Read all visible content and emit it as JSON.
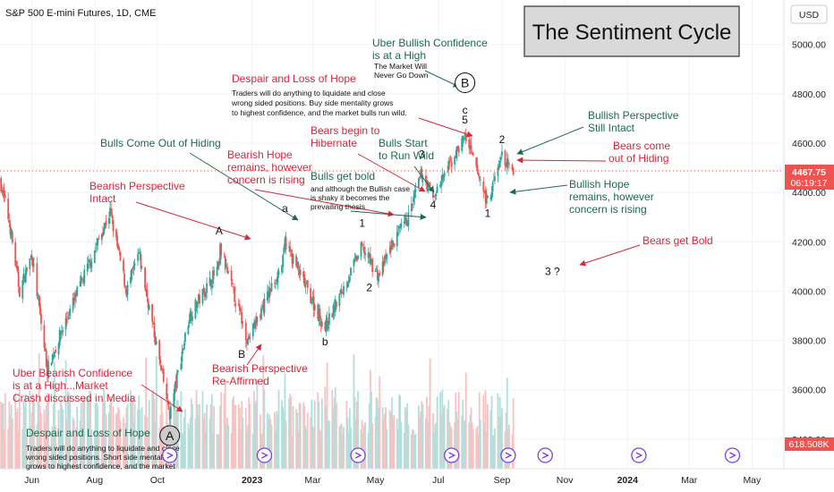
{
  "header": {
    "symbol": "S&P 500 E-mini Futures, 1D, CME",
    "currency": "USD"
  },
  "title_box": {
    "text": "The Sentiment Cycle"
  },
  "price_badges": {
    "last_price": "4467.75",
    "countdown": "06:19:17",
    "volume": "618.508K"
  },
  "colors": {
    "up": "#26a69a",
    "down": "#ef5350",
    "bear_note": "#d7263d",
    "bull_note": "#1b6b50",
    "event": "#7b3fe4"
  },
  "chart_data": {
    "type": "candlestick",
    "title": "The Sentiment Cycle",
    "ylim": [
      3280,
      5180
    ],
    "y_ticks": [
      "5000.00",
      "4800.00",
      "4600.00",
      "4400.00",
      "4200.00",
      "4000.00",
      "3800.00",
      "3600.00",
      "3400.00"
    ],
    "y_tick_values": [
      5000,
      4800,
      4600,
      4400,
      4200,
      4000,
      3800,
      3600,
      3400
    ],
    "x_ticks": [
      "Jun",
      "Aug",
      "Oct",
      "2023",
      "Mar",
      "May",
      "Jul",
      "Sep",
      "Nov",
      "2024",
      "Mar",
      "May"
    ],
    "x_tick_dates": [
      "2022-06-01",
      "2022-08-01",
      "2022-10-01",
      "2023-01-01",
      "2023-03-01",
      "2023-05-01",
      "2023-07-01",
      "2023-09-01",
      "2023-11-01",
      "2024-01-01",
      "2024-03-01",
      "2024-05-01"
    ],
    "x_range": [
      "2022-05-01",
      "2024-06-01"
    ],
    "last_price": 4467.75,
    "anchors": [
      [
        "2022-05-01",
        4450
      ],
      [
        "2022-05-10",
        4280
      ],
      [
        "2022-05-20",
        4000
      ],
      [
        "2022-06-01",
        4150
      ],
      [
        "2022-06-16",
        3680
      ],
      [
        "2022-07-01",
        3850
      ],
      [
        "2022-08-16",
        4320
      ],
      [
        "2022-09-01",
        4000
      ],
      [
        "2022-09-13",
        4150
      ],
      [
        "2022-10-13",
        3500
      ],
      [
        "2022-11-01",
        3900
      ],
      [
        "2022-11-30",
        4100
      ],
      [
        "2022-12-01",
        4170
      ],
      [
        "2022-12-28",
        3800
      ],
      [
        "2023-01-31",
        4120
      ],
      [
        "2023-02-02",
        4200
      ],
      [
        "2023-03-13",
        3850
      ],
      [
        "2023-04-18",
        4180
      ],
      [
        "2023-05-04",
        4060
      ],
      [
        "2023-05-16",
        4180
      ],
      [
        "2023-06-02",
        4300
      ],
      [
        "2023-06-15",
        4480
      ],
      [
        "2023-06-26",
        4380
      ],
      [
        "2023-07-27",
        4630
      ],
      [
        "2023-08-18",
        4360
      ],
      [
        "2023-09-01",
        4550
      ],
      [
        "2023-09-12",
        4468
      ]
    ],
    "volume_ylim": [
      0,
      1800000
    ],
    "event_markers": [
      "2022-10-13",
      "2023-01-13",
      "2023-04-14",
      "2023-07-14",
      "2023-09-07",
      "2023-10-13",
      "2024-01-12",
      "2024-04-12"
    ],
    "price_points": [
      {
        "label": "A",
        "date": "2022-10-13",
        "price": 3400,
        "circled": true
      },
      {
        "label": "A",
        "date": "2022-11-30",
        "price": 4230
      },
      {
        "label": "B",
        "date": "2022-12-22",
        "price": 3730
      },
      {
        "label": "a",
        "date": "2023-02-02",
        "price": 4320
      },
      {
        "label": "b",
        "date": "2023-03-13",
        "price": 3780
      },
      {
        "label": "1",
        "date": "2023-04-18",
        "price": 4260
      },
      {
        "label": "2",
        "date": "2023-04-25",
        "price": 4000
      },
      {
        "label": "3",
        "date": "2023-06-15",
        "price": 4540
      },
      {
        "label": "4",
        "date": "2023-06-26",
        "price": 4335
      },
      {
        "label": "c",
        "date": "2023-07-27",
        "price": 4720
      },
      {
        "label": "5",
        "date": "2023-07-27",
        "price": 4680
      },
      {
        "label": "B",
        "date": "2023-07-27",
        "price": 4830,
        "circled": true
      },
      {
        "label": "1",
        "date": "2023-08-18",
        "price": 4300
      },
      {
        "label": "2",
        "date": "2023-09-01",
        "price": 4600
      },
      {
        "label": "3 ?",
        "date": "2023-10-20",
        "price": 4065
      }
    ]
  },
  "notes": {
    "despair_top": {
      "title": "Despair and Loss of Hope",
      "body": [
        "Traders will do anything to liquidate and close",
        "wrong sided positions.  Buy side mentality grows",
        "to highest confidence, and the market bulls run wild."
      ]
    },
    "uber_bullish": {
      "title": [
        "Uber Bullish Confidence",
        "is at a High"
      ],
      "sub": [
        "The Market Will",
        "Never Go Down"
      ]
    },
    "bulls_out": {
      "title": "Bulls Come Out of Hiding"
    },
    "bearish_hope": {
      "title": [
        "Bearish Hope",
        "remains, however",
        "concern is rising"
      ]
    },
    "bears_hibernate": {
      "title": [
        "Bears begin to",
        "Hibernate"
      ]
    },
    "bulls_start": {
      "title": [
        "Bulls Start",
        "to Run Wild"
      ]
    },
    "bulls_bold": {
      "title": "Bulls get bold",
      "body": [
        "and although the Bullish case",
        "is shaky it becomes the",
        "prevailing thesis"
      ]
    },
    "bearish_persp": {
      "title": [
        "Bearish Perspective",
        "Intact"
      ]
    },
    "bullish_persp": {
      "title": [
        "Bullish Perspective",
        "Still Intact"
      ]
    },
    "bears_come_out": {
      "title": [
        "Bears come",
        "out of Hiding"
      ]
    },
    "bullish_hope": {
      "title": [
        "Bullish Hope",
        "remains, however",
        "concern is rising"
      ]
    },
    "bears_bold": {
      "title": "Bears get Bold"
    },
    "bearish_reaffirmed": {
      "title": [
        "Bearish Perspective",
        "Re-Affirmed"
      ]
    },
    "uber_bearish": {
      "title": [
        "Uber Bearish Confidence",
        "is at a High...Market",
        "Crash discussed in Media"
      ]
    },
    "despair_bottom": {
      "title": "Despair and Loss of Hope",
      "body": [
        "Traders will do anything to liquidate and close",
        "wrong sided positions.  Short side mentality",
        "grows to highest confidence, and the market"
      ]
    }
  }
}
